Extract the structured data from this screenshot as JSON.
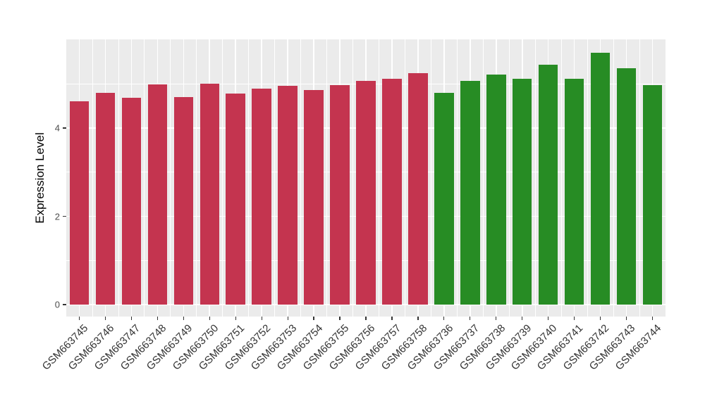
{
  "figure": {
    "background": "#FFFFFF",
    "panel_background": "#EBEBEB",
    "grid_color": "#FFFFFF",
    "y_tick_text_color": "#4D4D4D",
    "x_tick_text_color": "#333333",
    "tick_mark_color": "#333333"
  },
  "chart_data": {
    "type": "bar",
    "title": "",
    "xlabel": "",
    "ylabel": "Expression Level",
    "ylim": [
      0,
      6
    ],
    "yticks_major": [
      0,
      2,
      4
    ],
    "yticks_minor": [
      1,
      3,
      5
    ],
    "grid": "on",
    "legend_position": "none",
    "palette": {
      "red": "#C4344F",
      "green": "#278C24"
    },
    "bars": [
      {
        "label": "GSM663745",
        "value": 4.6,
        "group": "red"
      },
      {
        "label": "GSM663746",
        "value": 4.8,
        "group": "red"
      },
      {
        "label": "GSM663747",
        "value": 4.68,
        "group": "red"
      },
      {
        "label": "GSM663748",
        "value": 4.99,
        "group": "red"
      },
      {
        "label": "GSM663749",
        "value": 4.7,
        "group": "red"
      },
      {
        "label": "GSM663750",
        "value": 5.0,
        "group": "red"
      },
      {
        "label": "GSM663751",
        "value": 4.78,
        "group": "red"
      },
      {
        "label": "GSM663752",
        "value": 4.9,
        "group": "red"
      },
      {
        "label": "GSM663753",
        "value": 4.95,
        "group": "red"
      },
      {
        "label": "GSM663754",
        "value": 4.86,
        "group": "red"
      },
      {
        "label": "GSM663755",
        "value": 4.97,
        "group": "red"
      },
      {
        "label": "GSM663756",
        "value": 5.06,
        "group": "red"
      },
      {
        "label": "GSM663757",
        "value": 5.12,
        "group": "red"
      },
      {
        "label": "GSM663758",
        "value": 5.25,
        "group": "red"
      },
      {
        "label": "GSM663736",
        "value": 4.79,
        "group": "green"
      },
      {
        "label": "GSM663737",
        "value": 5.07,
        "group": "green"
      },
      {
        "label": "GSM663738",
        "value": 5.21,
        "group": "green"
      },
      {
        "label": "GSM663739",
        "value": 5.11,
        "group": "green"
      },
      {
        "label": "GSM663740",
        "value": 5.44,
        "group": "green"
      },
      {
        "label": "GSM663741",
        "value": 5.12,
        "group": "green"
      },
      {
        "label": "GSM663742",
        "value": 5.71,
        "group": "green"
      },
      {
        "label": "GSM663743",
        "value": 5.36,
        "group": "green"
      },
      {
        "label": "GSM663744",
        "value": 4.98,
        "group": "green"
      }
    ]
  }
}
